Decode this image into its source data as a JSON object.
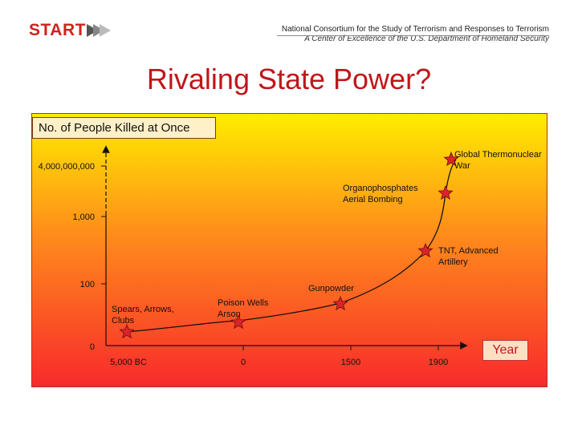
{
  "header": {
    "logo_text": "START",
    "org_line1": "National Consortium for the Study of Terrorism and Responses to Terrorism",
    "org_line2": "A Center of Excellence of the U.S. Department of Homeland Security"
  },
  "slide": {
    "title": "Rivaling State Power?"
  },
  "colors": {
    "accent_red": "#c0161a",
    "star_fill": "#d8242a",
    "gradient_top": "#ffed00",
    "gradient_bottom": "#f82a2c"
  },
  "chart_data": {
    "type": "line",
    "ylabel": "No. of People Killed at Once",
    "xlabel": "Year",
    "y_ticks": [
      "4,000,000,000",
      "1,000",
      "100",
      "0"
    ],
    "x_ticks": [
      "5,000 BC",
      "0",
      "1500",
      "1900"
    ],
    "y_scale": "non-linear (ordinal tick spacing)",
    "points": [
      {
        "label": "Spears, Arrows, Clubs",
        "x": "5,000 BC"
      },
      {
        "label": "Poison Wells Arson",
        "x": "0"
      },
      {
        "label": "Gunpowder",
        "x": "1500"
      },
      {
        "label": "TNT, Advanced Artillery",
        "x": "1900"
      },
      {
        "label": "Organophosphates Aerial Bombing",
        "x": "after 1900"
      },
      {
        "label": "Global Thermonuclear War",
        "x": "after 1900"
      }
    ],
    "annotations": [
      [
        "Spears, Arrows,",
        "Clubs"
      ],
      [
        "Poison Wells",
        "Arson"
      ],
      [
        "Gunpowder"
      ],
      [
        "TNT, Advanced",
        "Artillery"
      ],
      [
        "Organophosphates",
        "Aerial Bombing"
      ],
      [
        "Global Thermonuclear",
        "War"
      ]
    ]
  }
}
